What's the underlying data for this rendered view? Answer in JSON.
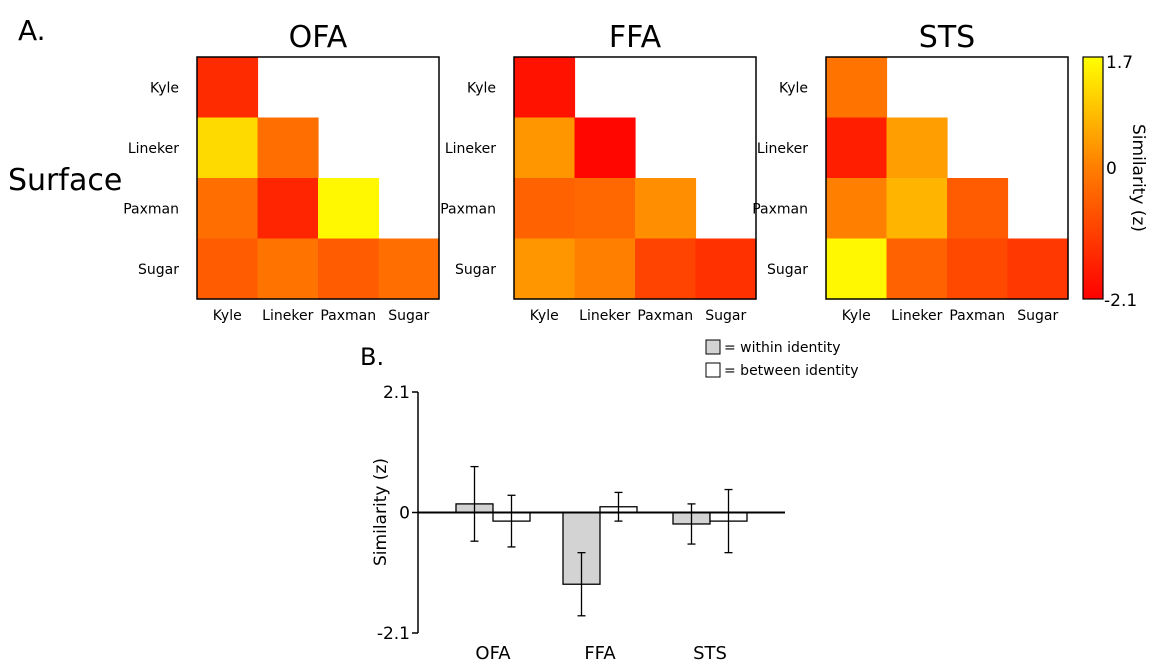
{
  "panel_labels": {
    "a": "A.",
    "b": "B."
  },
  "row_group_label": "Surface",
  "colorbar": {
    "max_label": "1.7",
    "mid_label": "0",
    "min_label": "-2.1",
    "title": "Similarity (z)",
    "colors": {
      "low": "#ff0000",
      "mid": "#ff8000",
      "high": "#ffff00"
    }
  },
  "legend": {
    "within_label": "= within identity",
    "between_label": "= between identity",
    "within_color": "#d3d3d3",
    "between_color": "#ffffff"
  },
  "chart_data": [
    {
      "type": "heatmap",
      "title": "OFA",
      "rows": [
        "Kyle",
        "Lineker",
        "Paxman",
        "Sugar"
      ],
      "cols": [
        "Kyle",
        "Lineker",
        "Paxman",
        "Sugar"
      ],
      "range": [
        -2.1,
        1.7
      ],
      "lower_triangle": true,
      "values": [
        [
          -1.4,
          null,
          null,
          null
        ],
        [
          1.2,
          -0.3,
          null,
          null
        ],
        [
          -0.3,
          -1.5,
          1.6,
          null
        ],
        [
          -0.6,
          -0.2,
          -0.6,
          -0.3
        ]
      ]
    },
    {
      "type": "heatmap",
      "title": "FFA",
      "rows": [
        "Kyle",
        "Lineker",
        "Paxman",
        "Sugar"
      ],
      "cols": [
        "Kyle",
        "Lineker",
        "Paxman",
        "Sugar"
      ],
      "range": [
        -2.1,
        1.7
      ],
      "lower_triangle": true,
      "values": [
        [
          -1.8,
          null,
          null,
          null
        ],
        [
          0.3,
          -2.0,
          null,
          null
        ],
        [
          -0.5,
          -0.4,
          0.2,
          null
        ],
        [
          0.3,
          0.0,
          -1.0,
          -1.3
        ]
      ]
    },
    {
      "type": "heatmap",
      "title": "STS",
      "rows": [
        "Kyle",
        "Lineker",
        "Paxman",
        "Sugar"
      ],
      "cols": [
        "Kyle",
        "Lineker",
        "Paxman",
        "Sugar"
      ],
      "range": [
        -2.1,
        1.7
      ],
      "lower_triangle": true,
      "values": [
        [
          -0.2,
          null,
          null,
          null
        ],
        [
          -1.6,
          0.4,
          null,
          null
        ],
        [
          0.0,
          0.7,
          -0.6,
          null
        ],
        [
          1.6,
          -0.5,
          -0.9,
          -1.2
        ]
      ]
    },
    {
      "type": "bar",
      "categories": [
        "OFA",
        "FFA",
        "STS"
      ],
      "ylabel": "Similarity (z)",
      "ylim": [
        -2.1,
        2.1
      ],
      "yticks": [
        "2.1",
        "0",
        "-2.1"
      ],
      "series": [
        {
          "key": "within",
          "values": [
            0.15,
            -1.25,
            -0.2
          ],
          "errors": [
            0.65,
            0.55,
            0.35
          ]
        },
        {
          "key": "between",
          "values": [
            -0.15,
            0.1,
            -0.15
          ],
          "errors": [
            0.45,
            0.25,
            0.55
          ]
        }
      ]
    }
  ]
}
